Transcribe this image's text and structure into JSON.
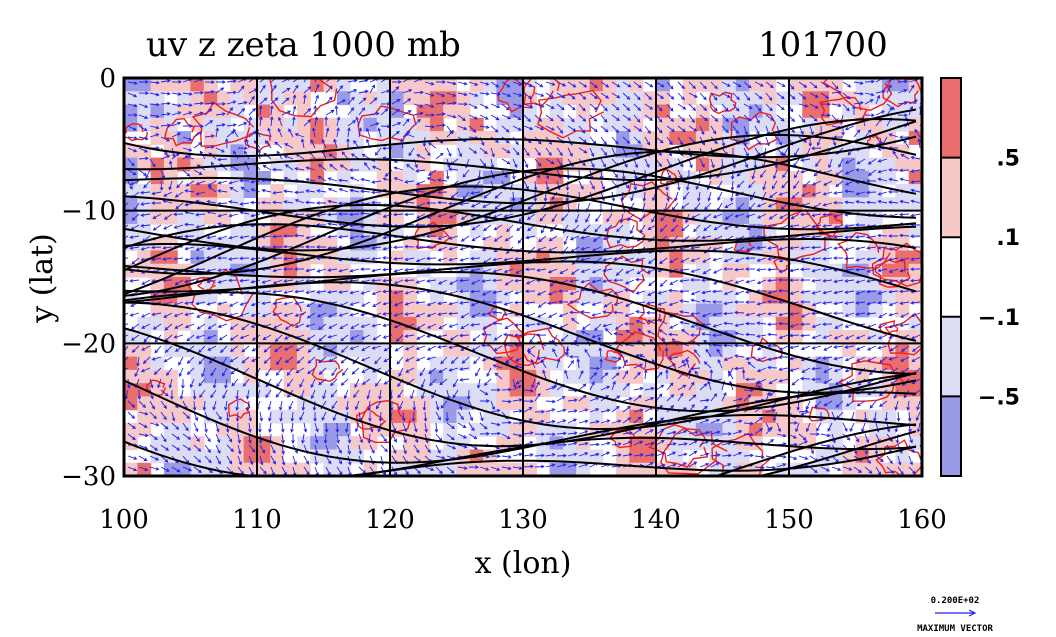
{
  "chart_data": {
    "type": "heatmap",
    "title_left": "uv z zeta 1000 mb",
    "title_right": "101700",
    "xlabel": "x (lon)",
    "ylabel": "y (lat)",
    "xlim": [
      100,
      160
    ],
    "ylim": [
      -30,
      0
    ],
    "x_ticks": [
      100,
      110,
      120,
      130,
      140,
      150,
      160
    ],
    "y_ticks": [
      0,
      -10,
      -20,
      -30
    ],
    "x_tick_labels": [
      "100",
      "110",
      "120",
      "130",
      "140",
      "150",
      "160"
    ],
    "y_tick_labels": [
      "0",
      "−10",
      "−20",
      "−30"
    ],
    "grid": true,
    "colorbar": {
      "labels": [
        ".5",
        ".1",
        "−.1",
        "−.5"
      ],
      "levels": [
        0.5,
        0.1,
        -0.1,
        -0.5
      ],
      "colors": [
        "#ea6e6e",
        "#f6c8c8",
        "#ffffff",
        "#dcdcf4",
        "#9a9ae6"
      ]
    },
    "vector_reference": {
      "value_label": "0.200E+02",
      "caption": "MAXIMUM VECTOR"
    },
    "series": [
      {
        "name": "uv",
        "color": "#1f22ee"
      },
      {
        "name": "z",
        "color": "#000000"
      },
      {
        "name": "zeta",
        "color": "#ee1d1d"
      }
    ]
  }
}
